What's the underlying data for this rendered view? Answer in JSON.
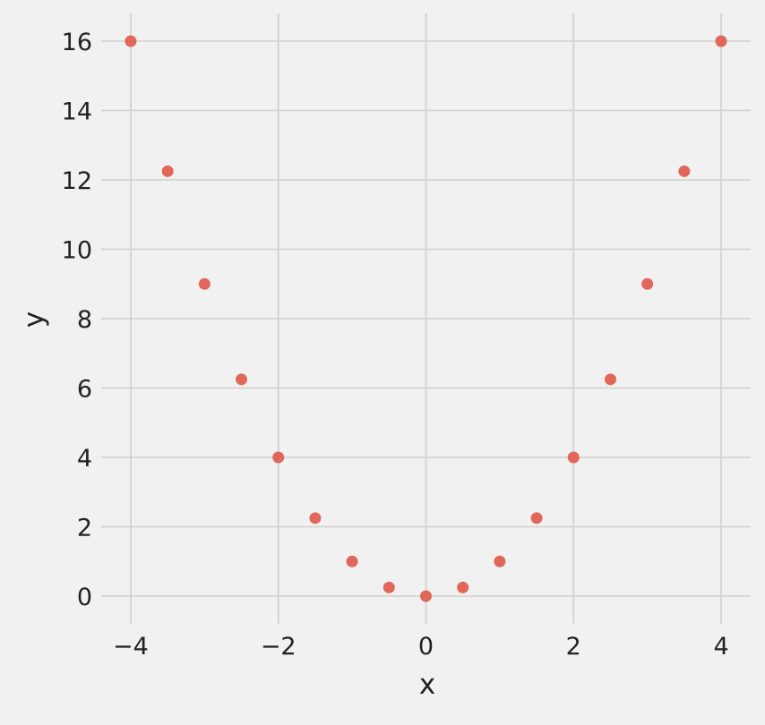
{
  "chart_data": {
    "type": "scatter",
    "title": "",
    "xlabel": "x",
    "ylabel": "y",
    "xlim": [
      -4.4,
      4.4
    ],
    "ylim": [
      -0.8,
      16.8
    ],
    "x_ticks": [
      -4,
      -2,
      0,
      2,
      4
    ],
    "x_tick_labels": [
      "−4",
      "−2",
      "0",
      "2",
      "4"
    ],
    "y_ticks": [
      0,
      2,
      4,
      6,
      8,
      10,
      12,
      14,
      16
    ],
    "y_tick_labels": [
      "0",
      "2",
      "4",
      "6",
      "8",
      "10",
      "12",
      "14",
      "16"
    ],
    "grid": true,
    "colors": {
      "background": "#f1f1f1",
      "grid": "#cfcfcf",
      "marker": "#e0675a",
      "text": "#222222"
    },
    "series": [
      {
        "x": [
          -4,
          -3.5,
          -3,
          -2.5,
          -2,
          -1.5,
          -1,
          -0.5,
          0,
          0.5,
          1,
          1.5,
          2,
          2.5,
          3,
          3.5,
          4
        ],
        "y": [
          16,
          12.25,
          9,
          6.25,
          4,
          2.25,
          1,
          0.25,
          0,
          0.25,
          1,
          2.25,
          4,
          6.25,
          9,
          12.25,
          16
        ]
      }
    ]
  }
}
